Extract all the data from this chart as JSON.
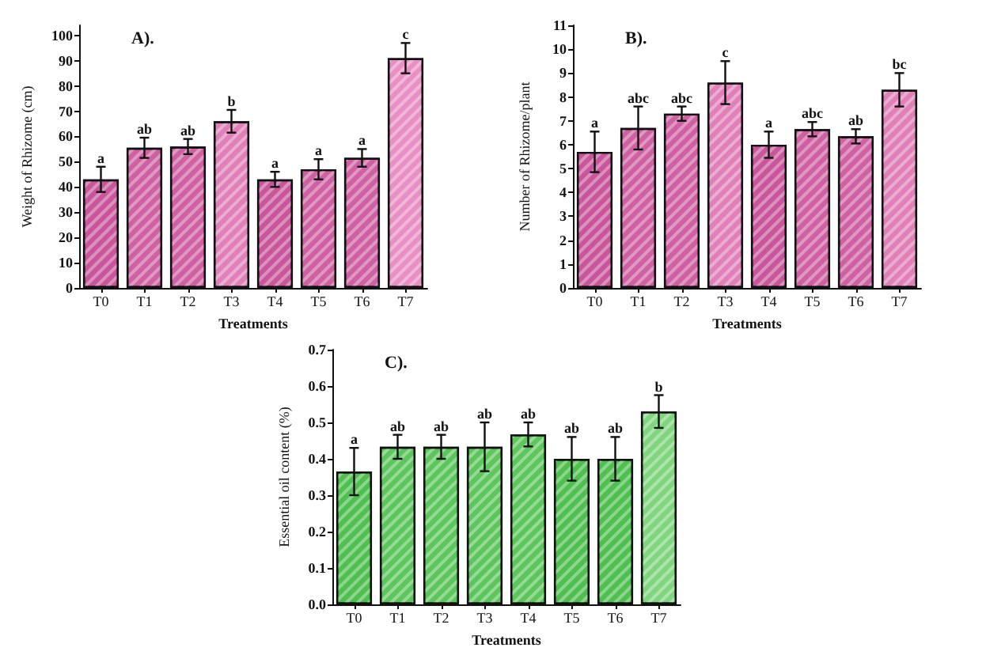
{
  "chart_data": [
    {
      "type": "bar",
      "title": "A).",
      "xlabel": "Treatments",
      "ylabel": "Weight of Rhizome (cm)",
      "categories": [
        "T0",
        "T1",
        "T2",
        "T3",
        "T4",
        "T5",
        "T6",
        "T7"
      ],
      "values": [
        43,
        55.5,
        56,
        66,
        43,
        47,
        51.5,
        91
      ],
      "errors": [
        5,
        4,
        3,
        4.5,
        3,
        4,
        3.5,
        6
      ],
      "colors": [
        "#c9559a",
        "#cf61a2",
        "#cf61a2",
        "#e07fb8",
        "#c9559a",
        "#cf61a2",
        "#cf61a2",
        "#e890c4"
      ],
      "ylim": [
        0,
        104
      ],
      "yticks": [
        0,
        10,
        20,
        30,
        40,
        50,
        60,
        70,
        80,
        90,
        100
      ],
      "annotations": [
        {
          "text": "a",
          "x": "T0",
          "y": 48
        },
        {
          "text": "ab",
          "x": "T1",
          "y": 59.5
        },
        {
          "text": "ab",
          "x": "T2",
          "y": 59
        },
        {
          "text": "b",
          "x": "T3",
          "y": 70.5
        },
        {
          "text": "a",
          "x": "T4",
          "y": 46
        },
        {
          "text": "a",
          "x": "T5",
          "y": 51
        },
        {
          "text": "a",
          "x": "T6",
          "y": 55
        },
        {
          "text": "c",
          "x": "T7",
          "y": 97
        }
      ]
    },
    {
      "type": "bar",
      "title": "B).",
      "xlabel": "Treatments",
      "ylabel": "Number of Rhizome/plant",
      "categories": [
        "T0",
        "T1",
        "T2",
        "T3",
        "T4",
        "T5",
        "T6",
        "T7"
      ],
      "values": [
        5.7,
        6.7,
        7.3,
        8.6,
        6.0,
        6.65,
        6.35,
        8.3
      ],
      "errors": [
        0.85,
        0.9,
        0.3,
        0.9,
        0.55,
        0.3,
        0.3,
        0.7
      ],
      "colors": [
        "#c9559a",
        "#cf61a2",
        "#cf61a2",
        "#e07fb8",
        "#c9559a",
        "#cf61a2",
        "#cf61a2",
        "#e07fb8"
      ],
      "ylim": [
        0,
        11
      ],
      "yticks": [
        0,
        1,
        2,
        3,
        4,
        5,
        6,
        7,
        8,
        9,
        10,
        11
      ],
      "annotations": [
        {
          "text": "a",
          "x": "T0",
          "y": 6.55
        },
        {
          "text": "abc",
          "x": "T1",
          "y": 7.6
        },
        {
          "text": "abc",
          "x": "T2",
          "y": 7.6
        },
        {
          "text": "c",
          "x": "T3",
          "y": 9.5
        },
        {
          "text": "a",
          "x": "T4",
          "y": 6.55
        },
        {
          "text": "abc",
          "x": "T5",
          "y": 6.95
        },
        {
          "text": "ab",
          "x": "T6",
          "y": 6.65
        },
        {
          "text": "bc",
          "x": "T7",
          "y": 9.0
        }
      ]
    },
    {
      "type": "bar",
      "title": "C).",
      "xlabel": "Treatments",
      "ylabel": "Essential oil content (%)",
      "categories": [
        "T0",
        "T1",
        "T2",
        "T3",
        "T4",
        "T5",
        "T6",
        "T7"
      ],
      "values": [
        0.365,
        0.433,
        0.433,
        0.433,
        0.467,
        0.4,
        0.4,
        0.53
      ],
      "errors": [
        0.065,
        0.033,
        0.033,
        0.067,
        0.033,
        0.06,
        0.06,
        0.045
      ],
      "colors": [
        "#4fbf4f",
        "#5cc65c",
        "#5cc65c",
        "#5cc65c",
        "#5cc65c",
        "#4fbf4f",
        "#4fbf4f",
        "#7fd67f"
      ],
      "ylim": [
        0,
        0.7
      ],
      "yticks": [
        {
          "value": 0,
          "label": "0.0"
        },
        0.1,
        0.2,
        0.3,
        0.4,
        0.5,
        0.6,
        0.7
      ],
      "annotations": [
        {
          "text": "a",
          "x": "T0",
          "y": 0.43
        },
        {
          "text": "ab",
          "x": "T1",
          "y": 0.466
        },
        {
          "text": "ab",
          "x": "T2",
          "y": 0.466
        },
        {
          "text": "ab",
          "x": "T3",
          "y": 0.5
        },
        {
          "text": "ab",
          "x": "T4",
          "y": 0.5
        },
        {
          "text": "ab",
          "x": "T5",
          "y": 0.46
        },
        {
          "text": "ab",
          "x": "T6",
          "y": 0.46
        },
        {
          "text": "b",
          "x": "T7",
          "y": 0.575
        }
      ]
    }
  ]
}
